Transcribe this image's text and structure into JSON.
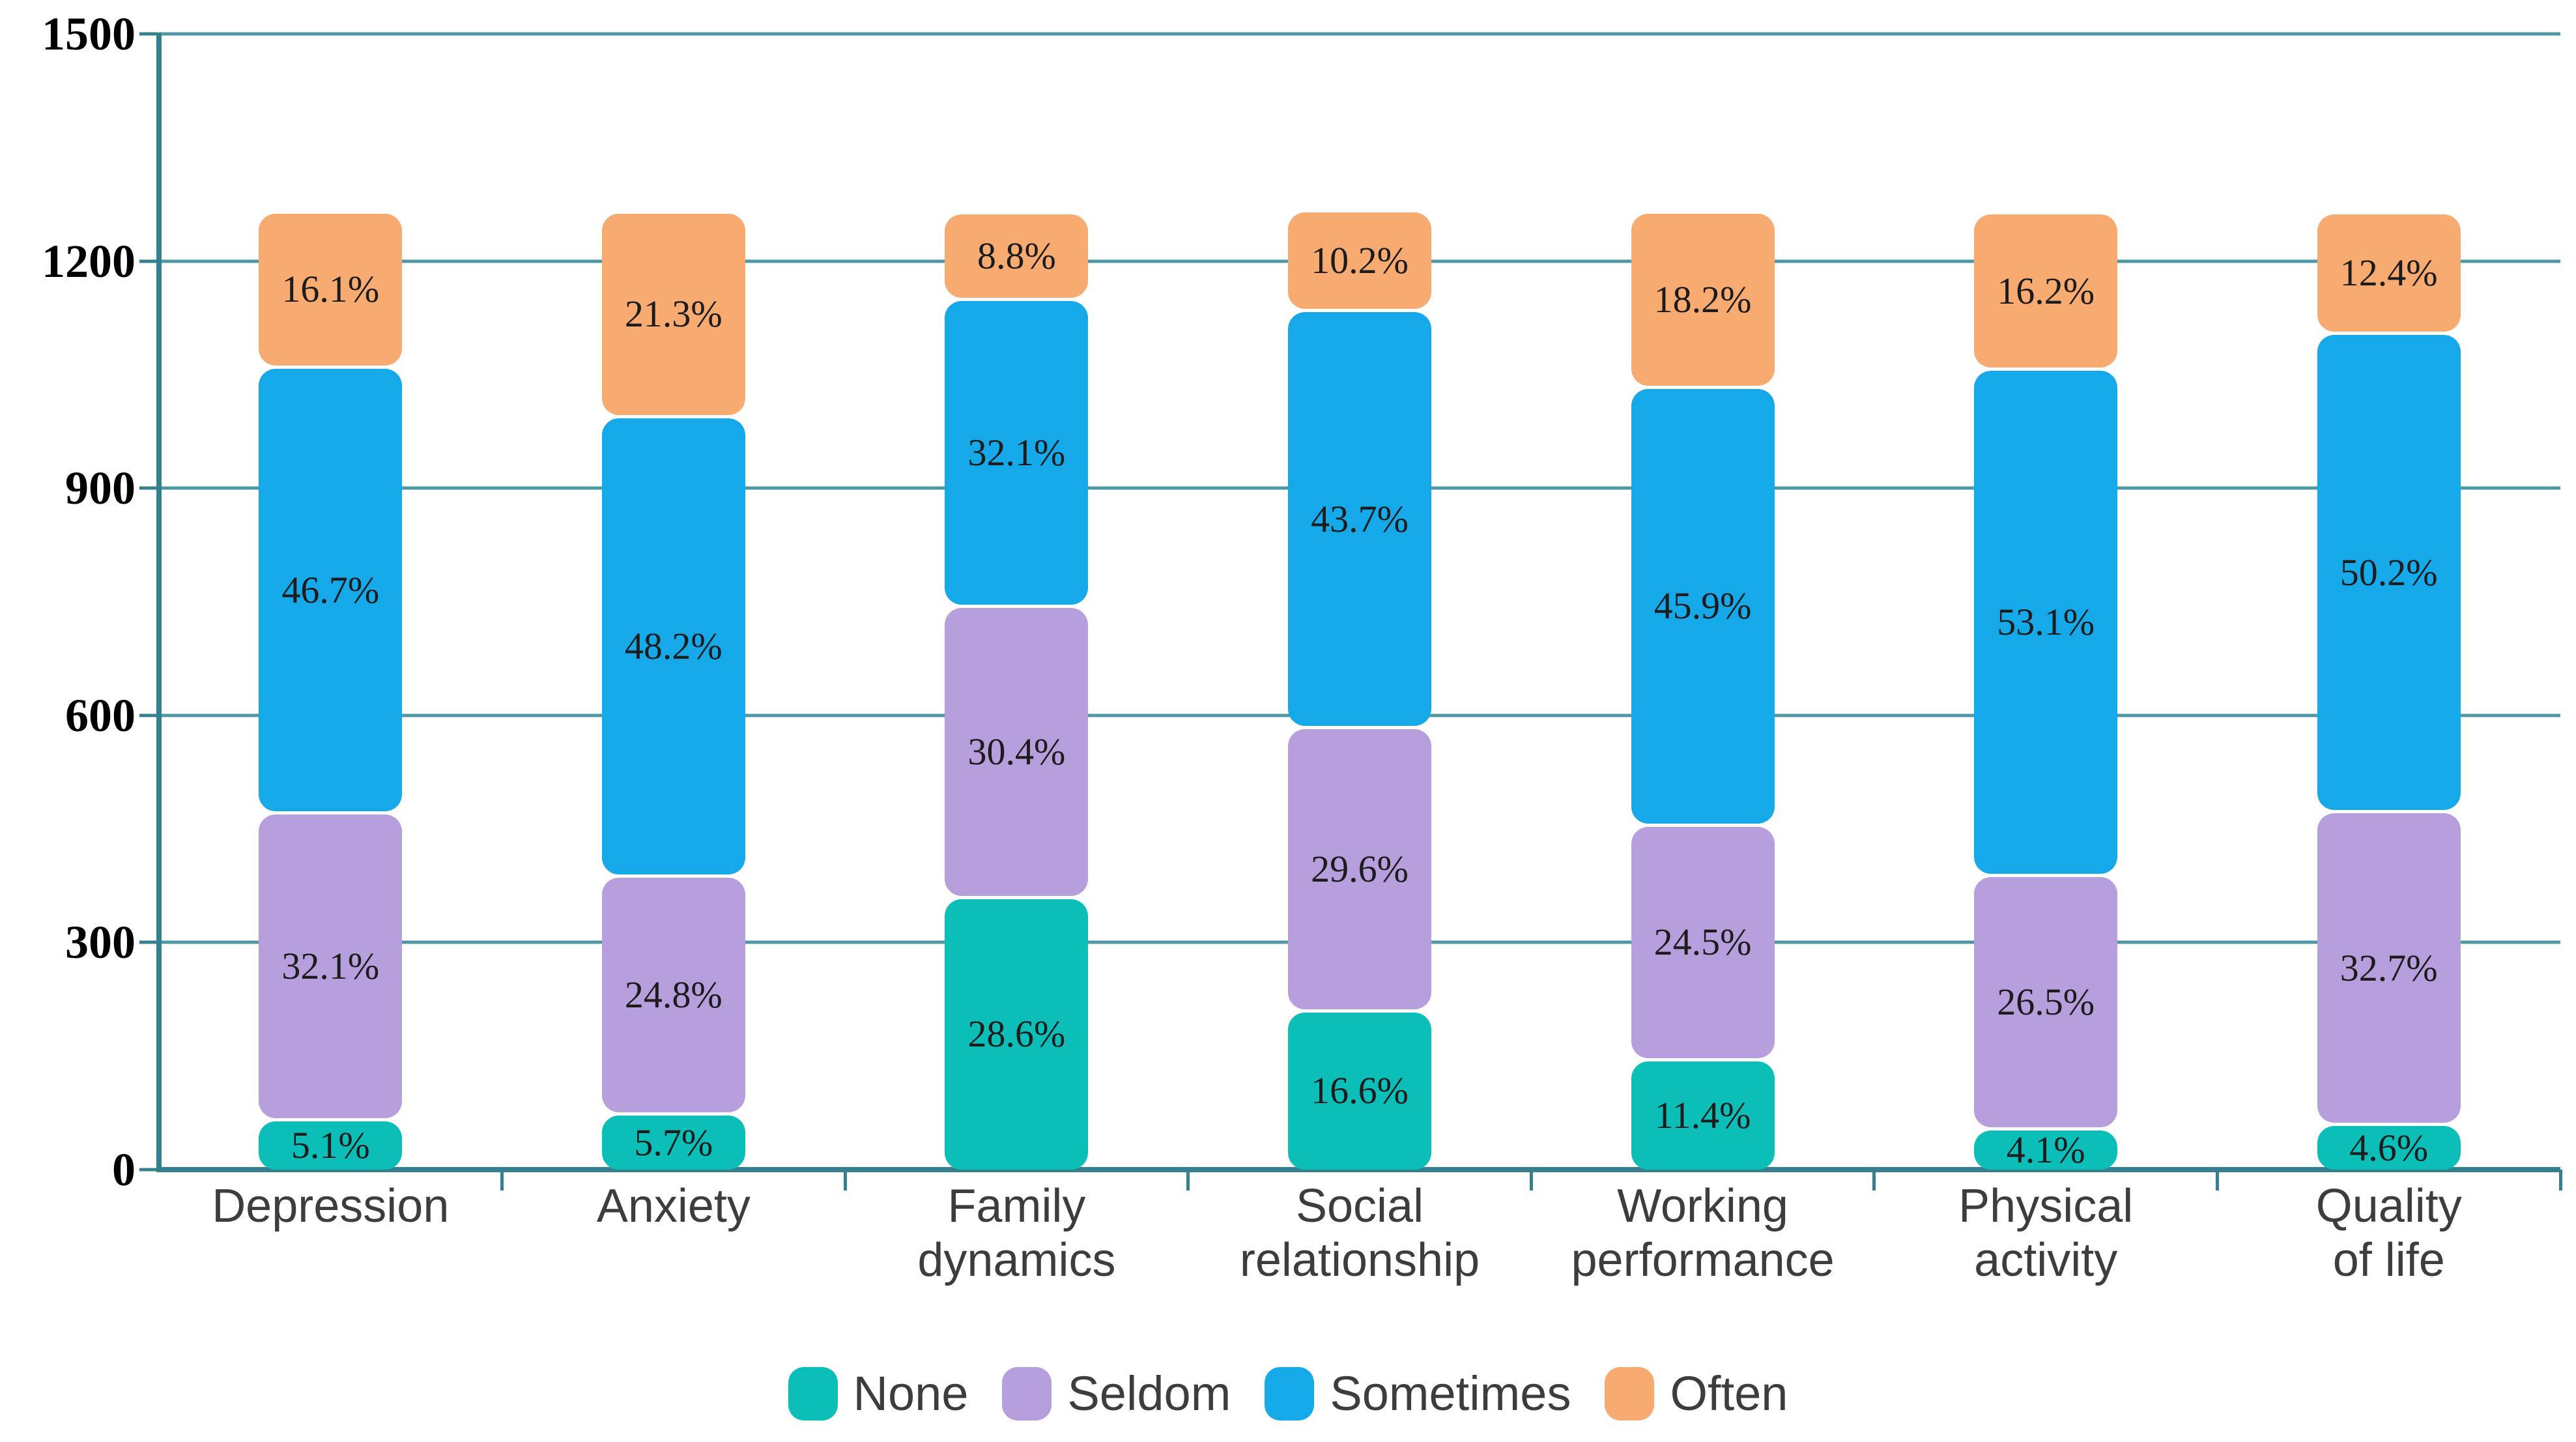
{
  "chart_data": {
    "type": "bar",
    "stacked": true,
    "title": "",
    "categories": [
      "Depression",
      "Anxiety",
      "Family\ndynamics",
      "Social\nrelationship",
      "Working\nperformance",
      "Physical\nactivity",
      "Quality\nof life"
    ],
    "series": [
      {
        "name": "None",
        "color": "#0bbfb8",
        "values": [
          5.1,
          5.7,
          28.6,
          16.6,
          11.4,
          4.1,
          4.6
        ]
      },
      {
        "name": "Seldom",
        "color": "#b79edc",
        "values": [
          32.1,
          24.8,
          30.4,
          29.6,
          24.5,
          26.5,
          32.7
        ]
      },
      {
        "name": "Sometimes",
        "color": "#16a9ea",
        "values": [
          46.7,
          48.2,
          32.1,
          43.7,
          45.9,
          53.1,
          50.2
        ]
      },
      {
        "name": "Often",
        "color": "#f8ab71",
        "values": [
          16.1,
          21.3,
          8.8,
          10.2,
          18.2,
          16.2,
          12.4
        ]
      }
    ],
    "value_suffix": "%",
    "bar_total_units": 1250,
    "y_axis": {
      "min": 0,
      "max": 1500,
      "tick_step": 300,
      "ticks": [
        "0",
        "300",
        "600",
        "900",
        "1200",
        "1500"
      ]
    },
    "grid": true,
    "legend_position": "bottom",
    "colors": {
      "grid": "#4e98a3",
      "axis": "#35808e",
      "tick_label": "#000000",
      "category_label": "#3d3d3d",
      "value_label": "#1c1c1c",
      "background": "#ffffff"
    }
  }
}
